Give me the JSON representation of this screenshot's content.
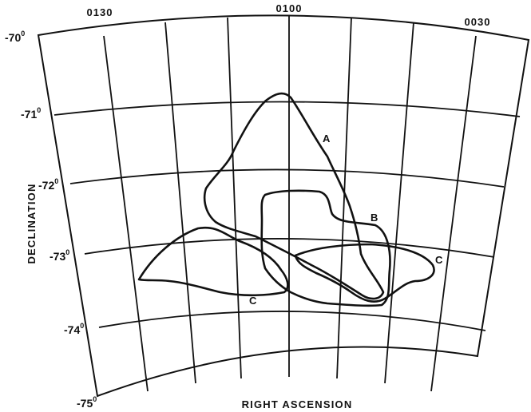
{
  "chart": {
    "ra_ticks": [
      "0130",
      "0100",
      "0030"
    ],
    "dec_ticks": [
      {
        "value": "-70",
        "sup": "0"
      },
      {
        "value": "-71",
        "sup": "0"
      },
      {
        "value": "-72",
        "sup": "0"
      },
      {
        "value": "-73",
        "sup": "0"
      },
      {
        "value": "-74",
        "sup": "0"
      },
      {
        "value": "-75",
        "sup": "0"
      }
    ],
    "x_axis_title": "RIGHT ASCENSION",
    "y_axis_title": "DECLINATION",
    "contours": [
      {
        "label": "A"
      },
      {
        "label": "B"
      },
      {
        "label": "C"
      },
      {
        "label": "C"
      }
    ]
  }
}
